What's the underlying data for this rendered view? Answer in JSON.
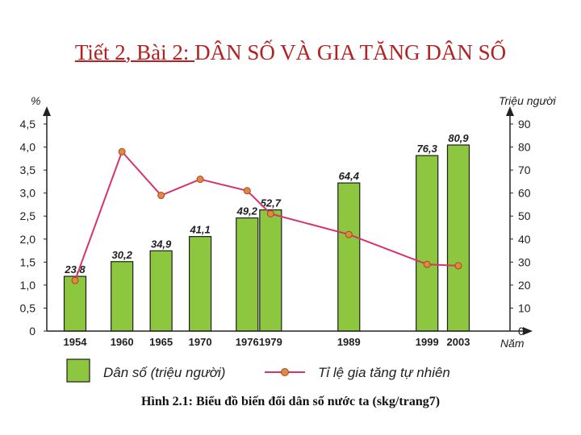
{
  "slide": {
    "title_part1": "Tiết 2, Bài 2: ",
    "title_part2": "DÂN SỐ VÀ GIA TĂNG DÂN SỐ",
    "caption": "Hình 2.1: Biểu đồ biến đổi dân số nước ta (skg/trang7)"
  },
  "chart_data": {
    "type": "bar+line",
    "categories": [
      "1954",
      "1960",
      "1965",
      "1970",
      "1976",
      "1979",
      "1989",
      "1999",
      "2003"
    ],
    "years": [
      1954,
      1960,
      1965,
      1970,
      1976,
      1979,
      1989,
      1999,
      2003
    ],
    "left_axis": {
      "label": "%",
      "range": [
        0,
        4.5
      ],
      "ticks": [
        "0",
        "0,5",
        "1,0",
        "1,5",
        "2,0",
        "2,5",
        "3,0",
        "3,5",
        "4,0",
        "4,5"
      ]
    },
    "right_axis": {
      "label": "Triệu người",
      "range": [
        0,
        90
      ],
      "ticks": [
        "0",
        "10",
        "20",
        "30",
        "40",
        "50",
        "60",
        "70",
        "80",
        "90"
      ]
    },
    "x_axis_label": "Năm",
    "series": [
      {
        "name": "Dân số (triệu người)",
        "type": "bar",
        "axis": "right",
        "color": "#8dc63f",
        "values": [
          23.8,
          30.2,
          34.9,
          41.1,
          49.2,
          52.7,
          64.4,
          76.3,
          80.9
        ],
        "labels": [
          "23,8",
          "30,2",
          "34,9",
          "41,1",
          "49,2",
          "52,7",
          "64,4",
          "76,3",
          "80,9"
        ]
      },
      {
        "name": "Tỉ lệ gia tăng tự nhiên",
        "type": "line",
        "axis": "left",
        "color": "#d6336c",
        "marker_color": "#e08a3c",
        "values": [
          1.1,
          3.9,
          2.95,
          3.3,
          3.05,
          2.55,
          2.1,
          1.45,
          1.42
        ]
      }
    ],
    "legend": [
      {
        "label": "Dân số (triệu người)"
      },
      {
        "label": "Tỉ lệ gia tăng tự nhiên"
      }
    ]
  }
}
